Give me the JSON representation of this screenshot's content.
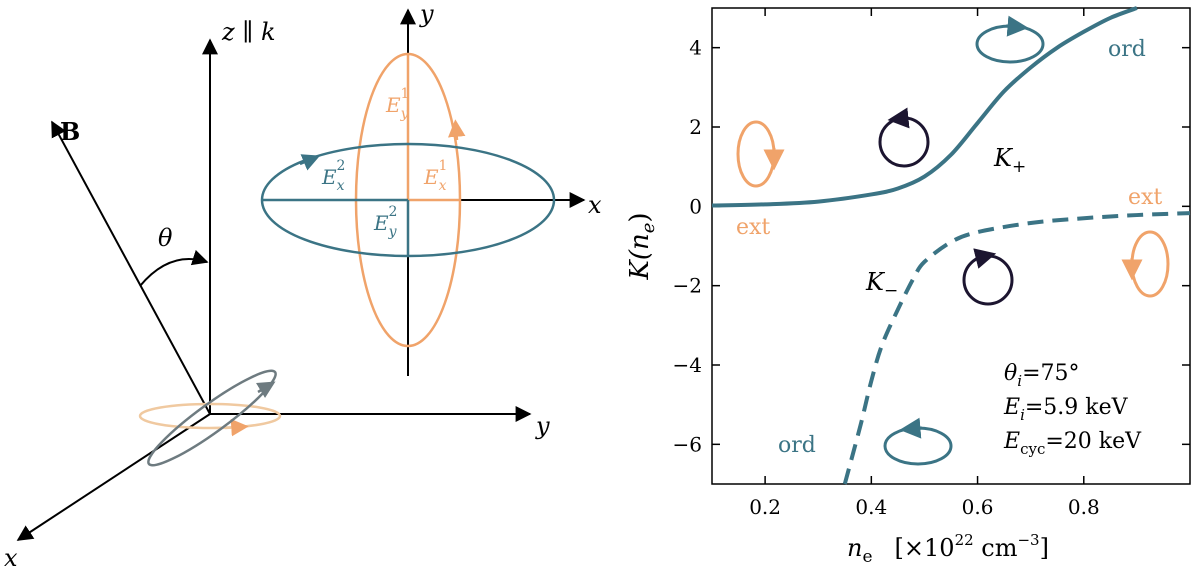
{
  "colors": {
    "teal": "#3b7485",
    "orange": "#f0a36a",
    "dark": "#1c1530",
    "gray": "#6e7b80",
    "black": "#000000"
  },
  "diagram": {
    "z_axis_label": "z ∥ k",
    "y_axis_label": "y",
    "x_axis_label": "x",
    "b_label": "B",
    "theta_label": "θ",
    "inset_x_label": "x",
    "inset_y_label": "y",
    "ey1": {
      "base": "E",
      "sub": "y",
      "sup": "1"
    },
    "ex1": {
      "base": "E",
      "sub": "x",
      "sup": "1"
    },
    "ex2": {
      "base": "E",
      "sub": "x",
      "sup": "2"
    },
    "ey2": {
      "base": "E",
      "sub": "y",
      "sup": "2"
    }
  },
  "chart_data": {
    "type": "line",
    "xlabel": "n",
    "xlabel_sub": "e",
    "xlabel_unit_pre": "[×10",
    "xlabel_unit_exp": "22",
    "xlabel_unit_mid": " cm",
    "xlabel_unit_exp2": "−3",
    "xlabel_unit_post": "]",
    "ylabel": "K(n",
    "ylabel_sub": "e",
    "ylabel_post": ")",
    "xlim": [
      0.1,
      1.0
    ],
    "ylim": [
      -7,
      5
    ],
    "xticks": [
      0.2,
      0.4,
      0.6,
      0.8
    ],
    "xtick_labels": [
      "0.2",
      "0.4",
      "0.6",
      "0.8"
    ],
    "yticks": [
      -6,
      -4,
      -2,
      0,
      2,
      4
    ],
    "ytick_labels": [
      "−6",
      "−4",
      "−2",
      "0",
      "2",
      "4"
    ],
    "series": [
      {
        "name": "K₊",
        "style": "solid",
        "points": [
          [
            0.1,
            0.02
          ],
          [
            0.2,
            0.05
          ],
          [
            0.3,
            0.12
          ],
          [
            0.4,
            0.3
          ],
          [
            0.45,
            0.45
          ],
          [
            0.5,
            0.75
          ],
          [
            0.55,
            1.3
          ],
          [
            0.6,
            2.1
          ],
          [
            0.65,
            2.9
          ],
          [
            0.7,
            3.5
          ],
          [
            0.75,
            4.0
          ],
          [
            0.8,
            4.4
          ],
          [
            0.85,
            4.75
          ],
          [
            0.9,
            5.0
          ]
        ]
      },
      {
        "name": "K₋",
        "style": "dashed",
        "points": [
          [
            0.35,
            -7.0
          ],
          [
            0.38,
            -5.5
          ],
          [
            0.4,
            -4.4
          ],
          [
            0.42,
            -3.5
          ],
          [
            0.45,
            -2.6
          ],
          [
            0.48,
            -1.8
          ],
          [
            0.5,
            -1.4
          ],
          [
            0.55,
            -0.9
          ],
          [
            0.6,
            -0.65
          ],
          [
            0.7,
            -0.42
          ],
          [
            0.8,
            -0.3
          ],
          [
            0.9,
            -0.22
          ],
          [
            1.0,
            -0.17
          ]
        ]
      }
    ],
    "labels": {
      "k_plus": "K",
      "k_plus_sub": "+",
      "k_minus": "K",
      "k_minus_sub": "−",
      "ord_top": "ord",
      "ext_left": "ext",
      "ext_right": "ext",
      "ord_bottom": "ord"
    },
    "annotation": {
      "theta": "θ",
      "theta_sub": "i",
      "theta_val": "=75°",
      "e": "E",
      "e_sub": "i",
      "e_val": "=5.9 keV",
      "ecyc": "E",
      "ecyc_sub": "cyc",
      "ecyc_val": "=20 keV"
    }
  }
}
